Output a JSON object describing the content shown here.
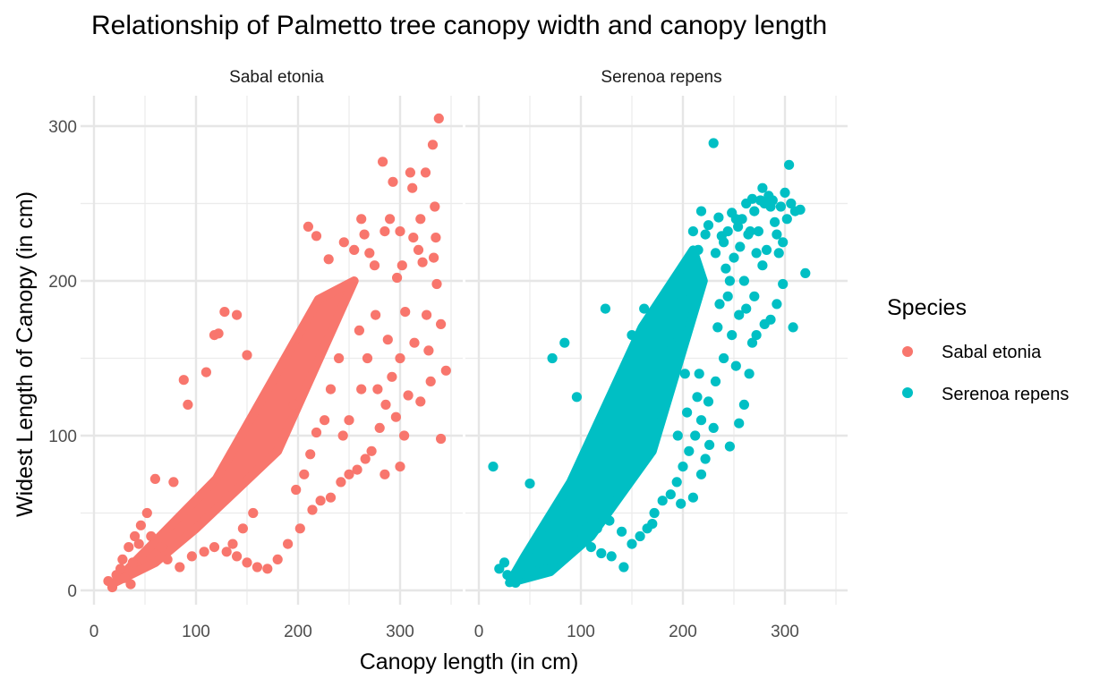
{
  "chart_data": {
    "type": "scatter",
    "title": "Relationship of Palmetto tree canopy width and canopy length",
    "xlabel": "Canopy length (in cm)",
    "ylabel": "Widest Length of Canopy (in cm)",
    "xlim": [
      0,
      350
    ],
    "ylim": [
      0,
      305
    ],
    "x_ticks": [
      "0",
      "100",
      "200",
      "300"
    ],
    "y_ticks": [
      "0",
      "100",
      "200",
      "300"
    ],
    "grid": true,
    "legend": {
      "title": "Species",
      "placement": "right",
      "entries": [
        "Sabal etonia",
        "Serenoa repens"
      ]
    },
    "facets": [
      {
        "name": "Sabal etonia",
        "color": "#F8766D",
        "cloud": [
          [
            20,
            5
          ],
          [
            50,
            25
          ],
          [
            120,
            72
          ],
          [
            220,
            188
          ],
          [
            255,
            200
          ],
          [
            180,
            90
          ],
          [
            100,
            40
          ],
          [
            60,
            18
          ]
        ],
        "points": [
          [
            14,
            6
          ],
          [
            18,
            2
          ],
          [
            22,
            10
          ],
          [
            30,
            8
          ],
          [
            36,
            4
          ],
          [
            38,
            18
          ],
          [
            44,
            30
          ],
          [
            52,
            50
          ],
          [
            60,
            72
          ],
          [
            78,
            70
          ],
          [
            88,
            136
          ],
          [
            92,
            120
          ],
          [
            110,
            141
          ],
          [
            118,
            165
          ],
          [
            122,
            166
          ],
          [
            128,
            180
          ],
          [
            140,
            178
          ],
          [
            150,
            152
          ],
          [
            210,
            235
          ],
          [
            218,
            229
          ],
          [
            230,
            214
          ],
          [
            245,
            225
          ],
          [
            255,
            220
          ],
          [
            262,
            240
          ],
          [
            265,
            230
          ],
          [
            270,
            218
          ],
          [
            275,
            210
          ],
          [
            283,
            277
          ],
          [
            285,
            232
          ],
          [
            290,
            240
          ],
          [
            293,
            264
          ],
          [
            297,
            202
          ],
          [
            300,
            232
          ],
          [
            302,
            210
          ],
          [
            305,
            180
          ],
          [
            310,
            270
          ],
          [
            312,
            260
          ],
          [
            313,
            228
          ],
          [
            318,
            220
          ],
          [
            320,
            240
          ],
          [
            322,
            212
          ],
          [
            325,
            270
          ],
          [
            326,
            178
          ],
          [
            328,
            155
          ],
          [
            330,
            135
          ],
          [
            332,
            288
          ],
          [
            333,
            215
          ],
          [
            334,
            248
          ],
          [
            335,
            228
          ],
          [
            336,
            198
          ],
          [
            338,
            305
          ],
          [
            340,
            172
          ],
          [
            340,
            98
          ],
          [
            345,
            142
          ],
          [
            300,
            150
          ],
          [
            292,
            138
          ],
          [
            286,
            120
          ],
          [
            280,
            105
          ],
          [
            272,
            90
          ],
          [
            266,
            85
          ],
          [
            258,
            78
          ],
          [
            250,
            75
          ],
          [
            242,
            70
          ],
          [
            232,
            60
          ],
          [
            222,
            58
          ],
          [
            214,
            52
          ],
          [
            202,
            40
          ],
          [
            190,
            30
          ],
          [
            180,
            20
          ],
          [
            170,
            14
          ],
          [
            160,
            15
          ],
          [
            150,
            18
          ],
          [
            140,
            22
          ],
          [
            130,
            25
          ],
          [
            276,
            178
          ],
          [
            268,
            150
          ],
          [
            320,
            122
          ],
          [
            308,
            126
          ],
          [
            296,
            112
          ],
          [
            285,
            75
          ],
          [
            304,
            100
          ],
          [
            262,
            130
          ],
          [
            250,
            110
          ],
          [
            244,
            100
          ],
          [
            300,
            80
          ],
          [
            314,
            160
          ],
          [
            288,
            162
          ],
          [
            278,
            130
          ],
          [
            260,
            168
          ],
          [
            240,
            150
          ],
          [
            232,
            130
          ],
          [
            226,
            110
          ],
          [
            218,
            102
          ],
          [
            212,
            88
          ],
          [
            206,
            75
          ],
          [
            198,
            65
          ],
          [
            118,
            28
          ],
          [
            108,
            25
          ],
          [
            96,
            22
          ],
          [
            84,
            15
          ],
          [
            72,
            20
          ],
          [
            66,
            28
          ],
          [
            56,
            35
          ],
          [
            46,
            42
          ],
          [
            40,
            35
          ],
          [
            34,
            28
          ],
          [
            28,
            20
          ],
          [
            26,
            14
          ],
          [
            196,
            120
          ],
          [
            136,
            30
          ],
          [
            146,
            40
          ],
          [
            156,
            50
          ]
        ]
      },
      {
        "name": "Serenoa repens",
        "color": "#00BFC4",
        "cloud": [
          [
            30,
            5
          ],
          [
            45,
            22
          ],
          [
            90,
            70
          ],
          [
            160,
            170
          ],
          [
            210,
            220
          ],
          [
            220,
            200
          ],
          [
            170,
            90
          ],
          [
            110,
            35
          ],
          [
            70,
            12
          ]
        ],
        "points": [
          [
            14,
            80
          ],
          [
            20,
            14
          ],
          [
            25,
            18
          ],
          [
            28,
            10
          ],
          [
            32,
            8
          ],
          [
            36,
            5
          ],
          [
            50,
            69
          ],
          [
            72,
            150
          ],
          [
            84,
            160
          ],
          [
            96,
            125
          ],
          [
            124,
            182
          ],
          [
            150,
            165
          ],
          [
            162,
            182
          ],
          [
            188,
            160
          ],
          [
            200,
            188
          ],
          [
            210,
            232
          ],
          [
            215,
            220
          ],
          [
            218,
            245
          ],
          [
            222,
            230
          ],
          [
            225,
            236
          ],
          [
            230,
            289
          ],
          [
            232,
            218
          ],
          [
            235,
            241
          ],
          [
            238,
            229
          ],
          [
            240,
            225
          ],
          [
            242,
            208
          ],
          [
            244,
            232
          ],
          [
            246,
            200
          ],
          [
            248,
            244
          ],
          [
            250,
            215
          ],
          [
            252,
            240
          ],
          [
            254,
            235
          ],
          [
            256,
            222
          ],
          [
            258,
            240
          ],
          [
            260,
            200
          ],
          [
            262,
            250
          ],
          [
            264,
            230
          ],
          [
            266,
            232
          ],
          [
            268,
            253
          ],
          [
            270,
            245
          ],
          [
            272,
            218
          ],
          [
            274,
            232
          ],
          [
            276,
            252
          ],
          [
            278,
            260
          ],
          [
            280,
            250
          ],
          [
            282,
            220
          ],
          [
            284,
            255
          ],
          [
            286,
            248
          ],
          [
            288,
            252
          ],
          [
            290,
            238
          ],
          [
            292,
            230
          ],
          [
            294,
            218
          ],
          [
            296,
            248
          ],
          [
            298,
            225
          ],
          [
            300,
            257
          ],
          [
            302,
            240
          ],
          [
            304,
            275
          ],
          [
            306,
            250
          ],
          [
            310,
            245
          ],
          [
            315,
            246
          ],
          [
            278,
            210
          ],
          [
            270,
            190
          ],
          [
            262,
            182
          ],
          [
            255,
            178
          ],
          [
            248,
            165
          ],
          [
            240,
            150
          ],
          [
            232,
            135
          ],
          [
            225,
            122
          ],
          [
            218,
            110
          ],
          [
            212,
            100
          ],
          [
            206,
            90
          ],
          [
            200,
            80
          ],
          [
            194,
            70
          ],
          [
            188,
            62
          ],
          [
            180,
            58
          ],
          [
            172,
            50
          ],
          [
            165,
            40
          ],
          [
            158,
            35
          ],
          [
            150,
            30
          ],
          [
            142,
            15
          ],
          [
            130,
            22
          ],
          [
            120,
            24
          ],
          [
            110,
            28
          ],
          [
            100,
            30
          ],
          [
            92,
            35
          ],
          [
            80,
            20
          ],
          [
            64,
            14
          ],
          [
            56,
            12
          ],
          [
            46,
            10
          ],
          [
            234,
            170
          ],
          [
            246,
            93
          ],
          [
            255,
            108
          ],
          [
            260,
            120
          ],
          [
            265,
            140
          ],
          [
            268,
            160
          ],
          [
            272,
            165
          ],
          [
            280,
            172
          ],
          [
            286,
            175
          ],
          [
            292,
            185
          ],
          [
            298,
            198
          ],
          [
            308,
            170
          ],
          [
            320,
            205
          ],
          [
            252,
            145
          ],
          [
            230,
            105
          ],
          [
            222,
            85
          ],
          [
            198,
            56
          ],
          [
            170,
            43
          ],
          [
            140,
            38
          ],
          [
            128,
            45
          ],
          [
            116,
            40
          ],
          [
            102,
            45
          ],
          [
            90,
            50
          ],
          [
            210,
            60
          ],
          [
            218,
            75
          ],
          [
            226,
            94
          ],
          [
            204,
            115
          ],
          [
            214,
            125
          ],
          [
            202,
            140
          ],
          [
            236,
            185
          ],
          [
            244,
            190
          ],
          [
            216,
            140
          ],
          [
            195,
            100
          ]
        ]
      }
    ]
  }
}
